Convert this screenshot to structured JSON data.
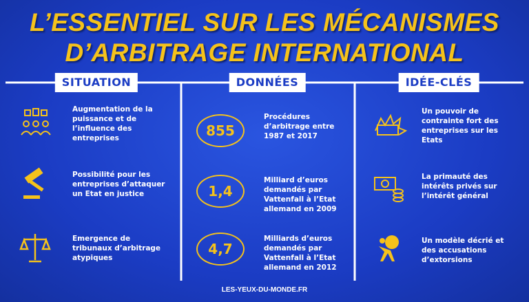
{
  "header": {
    "title_lines": [
      "L’ESSENTIEL SUR LES MÉCANISMES",
      "D’ARBITRAGE INTERNATIONAL"
    ]
  },
  "columns": [
    {
      "heading": "SITUATION",
      "items": [
        {
          "lines": [
            "Augmentation de la",
            "puissance et de",
            "l’influence des",
            "entreprises"
          ]
        },
        {
          "lines": [
            "Possibilité pour les",
            "entreprises d’attaquer",
            "un Etat en justice"
          ]
        },
        {
          "lines": [
            "Emergence de",
            "tribunaux d’arbitrage",
            "atypiques"
          ]
        }
      ]
    },
    {
      "heading": "DONNÉES",
      "items": [
        {
          "figure": "855",
          "lines": [
            "Procédures",
            "d’arbitrage entre",
            "1987 et 2017"
          ]
        },
        {
          "figure": "1,4",
          "lines": [
            "Milliard d’euros",
            "demandés par",
            "Vattenfall à l’Etat",
            "allemand en 2009"
          ]
        },
        {
          "figure": "4,7",
          "lines": [
            "Milliards d’euros",
            "demandés par",
            "Vattenfall à l’Etat",
            "allemand en 2012"
          ]
        }
      ]
    },
    {
      "heading": "IDÉE-CLÉS",
      "items": [
        {
          "lines": [
            "Un pouvoir de",
            "contrainte fort des",
            "entreprises sur les",
            "Etats"
          ]
        },
        {
          "lines": [
            "La primauté des",
            "intérêts privés sur",
            "l’intérêt général"
          ]
        },
        {
          "lines": [
            "Un modèle décrié et",
            "des accusations",
            "d’extorsions"
          ]
        }
      ]
    }
  ],
  "footer": "LES-YEUX-DU-MONDE.FR"
}
